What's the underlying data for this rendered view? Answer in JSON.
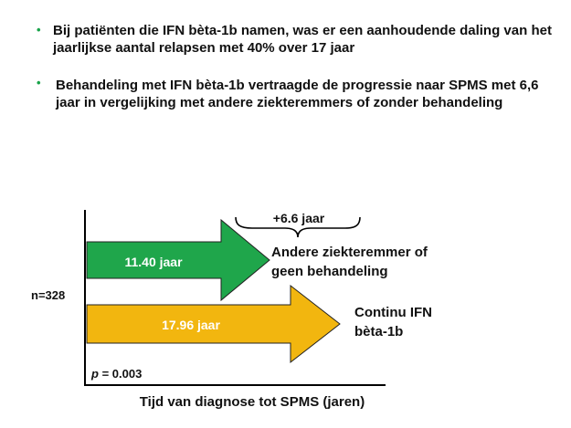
{
  "bullets": [
    {
      "text": "Bij patiënten die IFN bèta-1b namen, was er een aanhoudende daling van het jaarlijkse aantal relapsen met 40% over 17 jaar"
    },
    {
      "text": "Behandeling met IFN bèta-1b vertraagde de progressie naar SPMS met 6,6 jaar in vergelijking met andere ziekteremmers of zonder behandeling"
    }
  ],
  "diagram": {
    "n_label": "n=328",
    "p_label_italic": "p",
    "p_label_rest": " = 0.003",
    "difference_label": "+6.6  jaar",
    "x_axis_label": "Tijd van diagnose tot SPMS (jaren)",
    "arrows": [
      {
        "label": "11.40 jaar",
        "value": 11.4,
        "color": "#1fa64b",
        "legend_line1": "Andere ziekteremmer of",
        "legend_line2": "geen behandeling"
      },
      {
        "label": "17.96  jaar",
        "value": 17.96,
        "color": "#f2b60f",
        "legend_line1": "Continu IFN",
        "legend_line2": "bèta-1b"
      }
    ]
  },
  "colors": {
    "bullet": "#19a34a",
    "green_arrow": "#1fa64b",
    "yellow_arrow": "#f2b60f"
  }
}
